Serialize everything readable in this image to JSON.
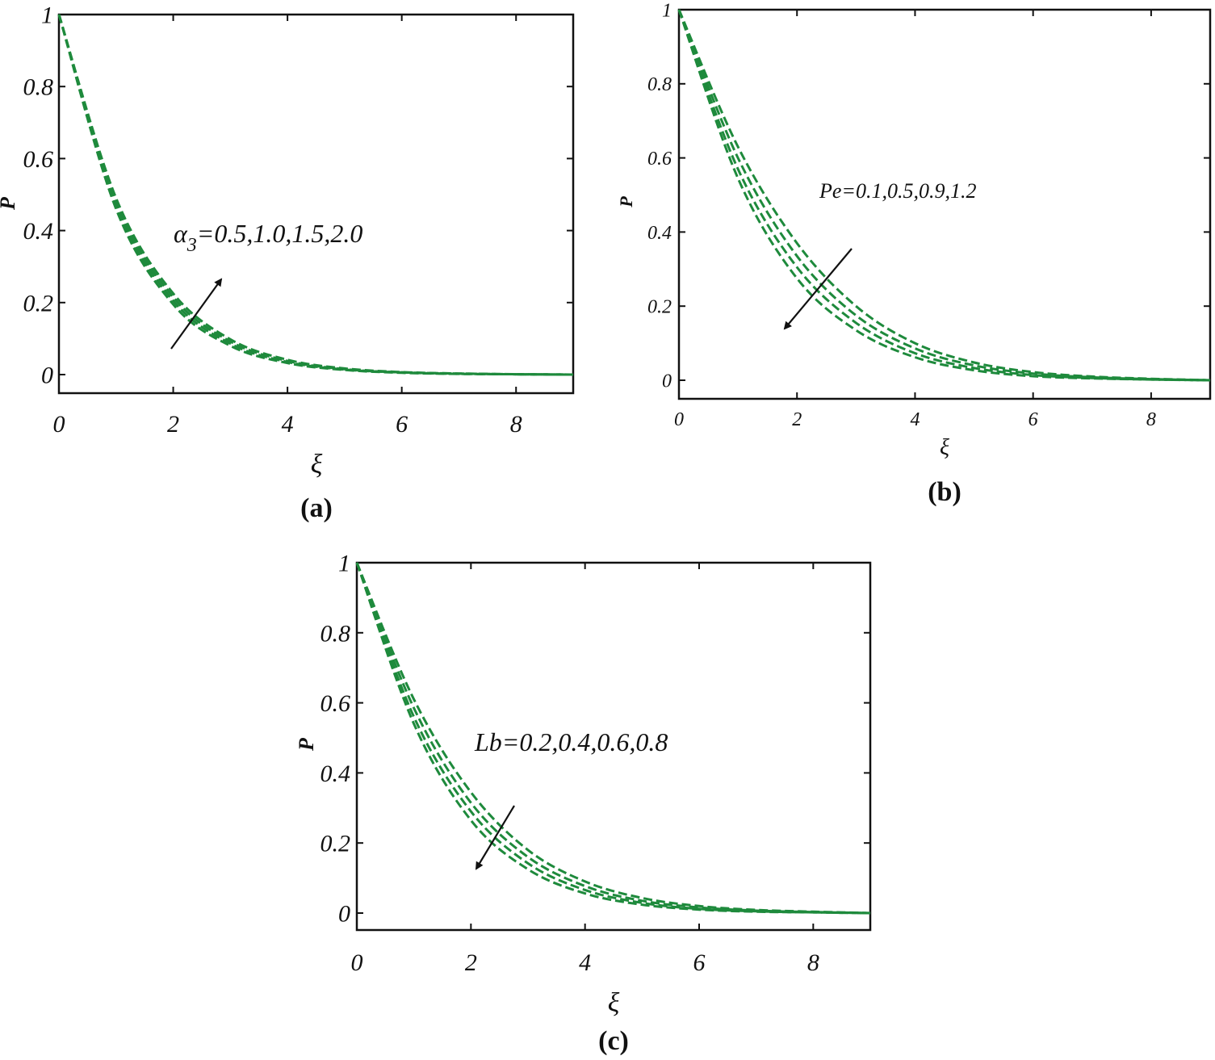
{
  "chart_data": [
    {
      "type": "line",
      "caption": "(a)",
      "xlabel": "ξ",
      "ylabel": "P",
      "xlim": [
        0,
        9
      ],
      "ylim": [
        0,
        1
      ],
      "xticks": [
        "0",
        "2",
        "4",
        "6",
        "8"
      ],
      "yticks": [
        "0",
        "0.2",
        "0.4",
        "0.6",
        "0.8",
        "1"
      ],
      "annotation": {
        "symbol": "α",
        "subscript": "3",
        "text": "=0.5,1.0,1.5,2.0",
        "arrow_direction": "up-right"
      },
      "line_color": "#1e8a3c",
      "line_style": "dashed",
      "series": [
        {
          "x": [
            0,
            1,
            2,
            3,
            4,
            5,
            6,
            7,
            8,
            9
          ],
          "values": [
            1.0,
            0.46,
            0.195,
            0.08,
            0.032,
            0.013,
            0.005,
            0.002,
            0.001,
            0.0
          ]
        },
        {
          "x": [
            0,
            1,
            2,
            3,
            4,
            5,
            6,
            7,
            8,
            9
          ],
          "values": [
            1.0,
            0.47,
            0.205,
            0.086,
            0.035,
            0.014,
            0.006,
            0.002,
            0.001,
            0.0
          ]
        },
        {
          "x": [
            0,
            1,
            2,
            3,
            4,
            5,
            6,
            7,
            8,
            9
          ],
          "values": [
            1.0,
            0.48,
            0.215,
            0.092,
            0.038,
            0.015,
            0.006,
            0.003,
            0.001,
            0.0
          ]
        },
        {
          "x": [
            0,
            1,
            2,
            3,
            4,
            5,
            6,
            7,
            8,
            9
          ],
          "values": [
            1.0,
            0.49,
            0.225,
            0.098,
            0.041,
            0.017,
            0.007,
            0.003,
            0.001,
            0.0
          ]
        }
      ]
    },
    {
      "type": "line",
      "caption": "(b)",
      "xlabel": "ξ",
      "ylabel": "P",
      "xlim": [
        0,
        9
      ],
      "ylim": [
        0,
        1
      ],
      "xticks": [
        "0",
        "2",
        "4",
        "6",
        "8"
      ],
      "yticks": [
        "0",
        "0.2",
        "0.4",
        "0.6",
        "0.8",
        "1"
      ],
      "annotation": {
        "symbol": "",
        "subscript": "",
        "text": "Pe=0.1,0.5,0.9,1.2",
        "arrow_direction": "down-left"
      },
      "line_color": "#1e8a3c",
      "line_style": "dashed",
      "series": [
        {
          "x": [
            0,
            1,
            2,
            3,
            4,
            5,
            6,
            7,
            8,
            9
          ],
          "values": [
            1.0,
            0.63,
            0.37,
            0.2,
            0.1,
            0.048,
            0.022,
            0.01,
            0.004,
            0.0
          ]
        },
        {
          "x": [
            0,
            1,
            2,
            3,
            4,
            5,
            6,
            7,
            8,
            9
          ],
          "values": [
            1.0,
            0.6,
            0.335,
            0.175,
            0.086,
            0.04,
            0.018,
            0.008,
            0.003,
            0.0
          ]
        },
        {
          "x": [
            0,
            1,
            2,
            3,
            4,
            5,
            6,
            7,
            8,
            9
          ],
          "values": [
            1.0,
            0.57,
            0.305,
            0.155,
            0.073,
            0.033,
            0.014,
            0.006,
            0.002,
            0.0
          ]
        },
        {
          "x": [
            0,
            1,
            2,
            3,
            4,
            5,
            6,
            7,
            8,
            9
          ],
          "values": [
            1.0,
            0.545,
            0.275,
            0.135,
            0.062,
            0.027,
            0.011,
            0.005,
            0.002,
            0.0
          ]
        }
      ]
    },
    {
      "type": "line",
      "caption": "(c)",
      "xlabel": "ξ",
      "ylabel": "P",
      "xlim": [
        0,
        9
      ],
      "ylim": [
        0,
        1
      ],
      "xticks": [
        "0",
        "2",
        "4",
        "6",
        "8"
      ],
      "yticks": [
        "0",
        "0.2",
        "0.4",
        "0.6",
        "0.8",
        "1"
      ],
      "annotation": {
        "symbol": "",
        "subscript": "",
        "text": "Lb=0.2,0.4,0.6,0.8",
        "arrow_direction": "down-left"
      },
      "line_color": "#1e8a3c",
      "line_style": "dashed",
      "series": [
        {
          "x": [
            0,
            1,
            2,
            3,
            4,
            5,
            6,
            7,
            8,
            9
          ],
          "values": [
            1.0,
            0.61,
            0.345,
            0.18,
            0.09,
            0.043,
            0.02,
            0.009,
            0.004,
            0.0
          ]
        },
        {
          "x": [
            0,
            1,
            2,
            3,
            4,
            5,
            6,
            7,
            8,
            9
          ],
          "values": [
            1.0,
            0.585,
            0.315,
            0.16,
            0.077,
            0.035,
            0.016,
            0.007,
            0.003,
            0.0
          ]
        },
        {
          "x": [
            0,
            1,
            2,
            3,
            4,
            5,
            6,
            7,
            8,
            9
          ],
          "values": [
            1.0,
            0.56,
            0.29,
            0.142,
            0.066,
            0.029,
            0.012,
            0.005,
            0.002,
            0.0
          ]
        },
        {
          "x": [
            0,
            1,
            2,
            3,
            4,
            5,
            6,
            7,
            8,
            9
          ],
          "values": [
            1.0,
            0.54,
            0.265,
            0.125,
            0.056,
            0.024,
            0.01,
            0.004,
            0.002,
            0.0
          ]
        }
      ]
    }
  ]
}
